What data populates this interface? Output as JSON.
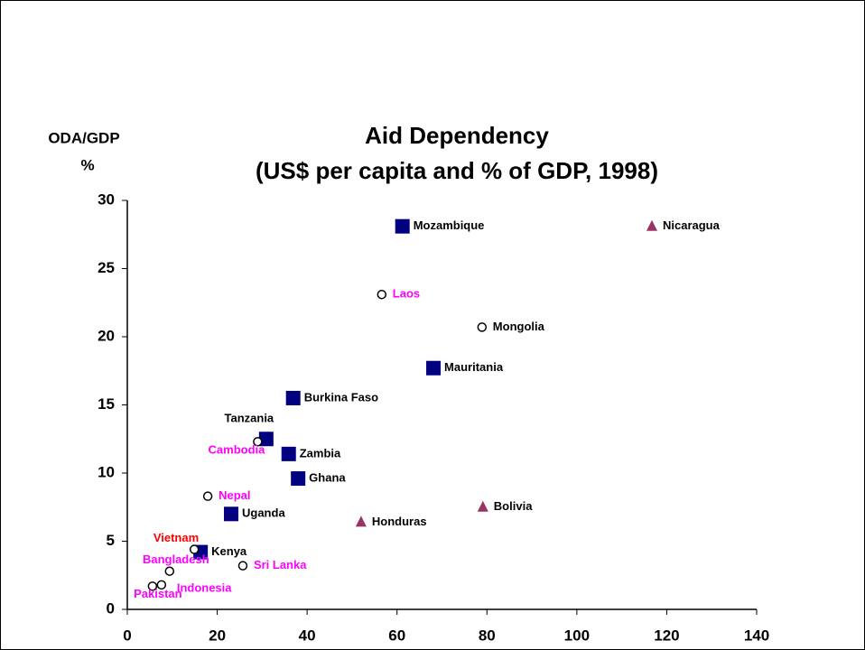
{
  "chart_data": {
    "type": "scatter",
    "title": "Aid Dependency",
    "subtitle": "(US$ per capita and % of GDP, 1998)",
    "y_label": "ODA/GDP",
    "y_unit": "%",
    "xlim": [
      0,
      140
    ],
    "xticks": [
      0,
      20,
      40,
      60,
      80,
      100,
      120,
      140
    ],
    "ylim": [
      0,
      30
    ],
    "yticks": [
      0,
      5,
      10,
      15,
      20,
      25,
      30
    ],
    "series": [
      {
        "marker": "square",
        "color": "#000080",
        "labels": [
          "Mozambique",
          "Mauritania",
          "Burkina Faso",
          "Tanzania",
          "Zambia",
          "Ghana",
          "Uganda",
          "Kenya"
        ],
        "label_colors": [
          "#000000",
          "#000000",
          "#000000",
          "#000000",
          "#000000",
          "#000000",
          "#000000",
          "#000000"
        ],
        "x": [
          61.2,
          68.1,
          36.9,
          30.9,
          35.9,
          38.0,
          23.1,
          16.3
        ],
        "values": [
          28.1,
          17.7,
          15.5,
          12.5,
          11.4,
          9.6,
          7.0,
          4.2
        ]
      },
      {
        "marker": "triangle",
        "color": "#993366",
        "labels": [
          "Nicaragua",
          "Honduras",
          "Bolivia"
        ],
        "label_colors": [
          "#000000",
          "#000000",
          "#000000"
        ],
        "x": [
          116.7,
          52.0,
          79.1
        ],
        "values": [
          28.1,
          6.4,
          7.5
        ]
      },
      {
        "marker": "circle",
        "color": "#ffffff",
        "labels": [
          "Laos",
          "Mongolia",
          "Cambodia",
          "Nepal",
          "Vietnam",
          "Sri Lanka",
          "Bangladesh",
          "Indonesia",
          "Pakistan"
        ],
        "label_colors": [
          "#ff00ff",
          "#000000",
          "#ff00ff",
          "#ff00ff",
          "#ff0000",
          "#ff00ff",
          "#ff00ff",
          "#ff00ff",
          "#ff00ff"
        ],
        "x": [
          56.6,
          78.9,
          29.0,
          17.9,
          14.9,
          25.7,
          9.4,
          7.6,
          5.6
        ],
        "values": [
          23.1,
          20.7,
          12.3,
          8.3,
          4.4,
          3.2,
          2.8,
          1.8,
          1.7
        ]
      }
    ]
  }
}
